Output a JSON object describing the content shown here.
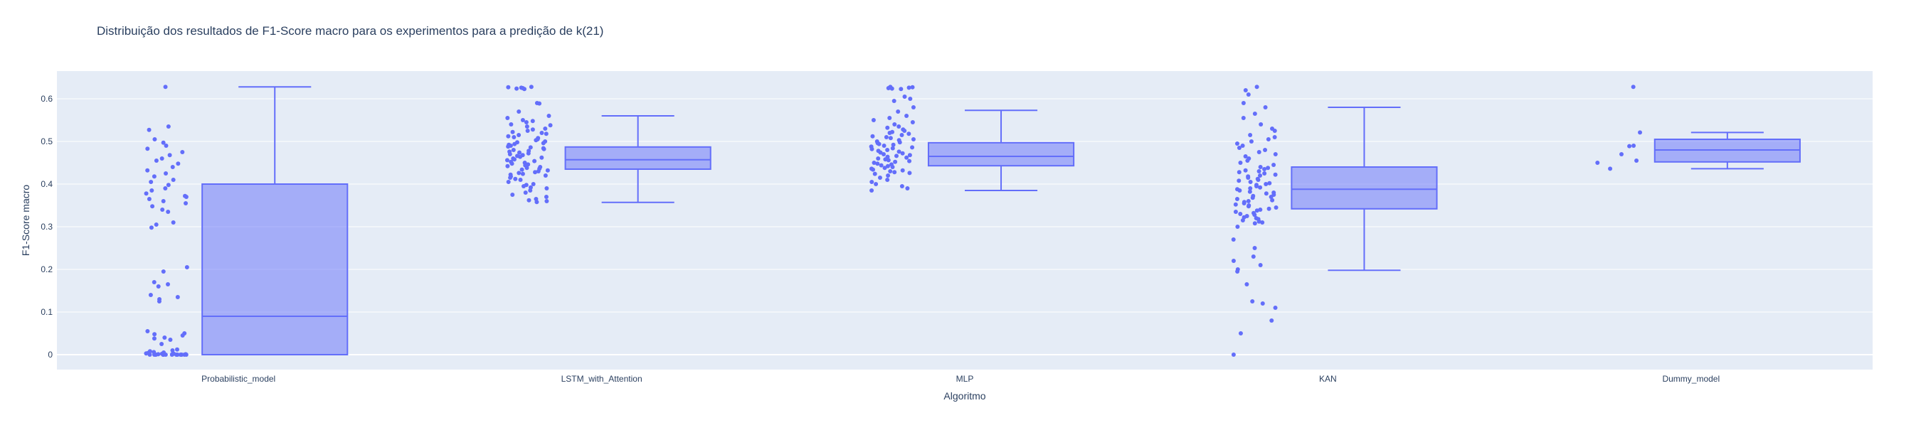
{
  "chart_data": {
    "type": "box",
    "title": "Distribuição dos resultados de F1-Score macro para os experimentos para a predição de k(21)",
    "xlabel": "Algoritmo",
    "ylabel": "F1-Score macro",
    "ylim": [
      -0.035,
      0.665
    ],
    "yticks": [
      0,
      0.1,
      0.2,
      0.3,
      0.4,
      0.5,
      0.6
    ],
    "ytick_labels": [
      "0",
      "0.1",
      "0.2",
      "0.3",
      "0.4",
      "0.5",
      "0.6"
    ],
    "grid": true,
    "legend": "none",
    "categories": [
      "Probabilistic_model",
      "LSTM_with_Attention",
      "MLP",
      "KAN",
      "Dummy_model"
    ],
    "boxes": [
      {
        "name": "Probabilistic_model",
        "min": 0.0,
        "q1": 0.0,
        "median": 0.09,
        "q3": 0.4,
        "max": 0.628
      },
      {
        "name": "LSTM_with_Attention",
        "min": 0.357,
        "q1": 0.435,
        "median": 0.457,
        "q3": 0.487,
        "max": 0.56
      },
      {
        "name": "MLP",
        "min": 0.385,
        "q1": 0.443,
        "median": 0.465,
        "q3": 0.497,
        "max": 0.573
      },
      {
        "name": "KAN",
        "min": 0.198,
        "q1": 0.342,
        "median": 0.388,
        "q3": 0.44,
        "max": 0.58
      },
      {
        "name": "Dummy_model",
        "min": 0.436,
        "q1": 0.452,
        "median": 0.48,
        "q3": 0.505,
        "max": 0.521
      }
    ],
    "points": [
      [
        0.628,
        0.535,
        0.527,
        0.505,
        0.497,
        0.49,
        0.483,
        0.475,
        0.468,
        0.46,
        0.455,
        0.448,
        0.44,
        0.432,
        0.425,
        0.418,
        0.41,
        0.405,
        0.398,
        0.39,
        0.385,
        0.378,
        0.372,
        0.37,
        0.365,
        0.36,
        0.355,
        0.348,
        0.34,
        0.335,
        0.31,
        0.305,
        0.298,
        0.205,
        0.195,
        0.17,
        0.165,
        0.16,
        0.14,
        0.135,
        0.13,
        0.125,
        0.055,
        0.05,
        0.048,
        0.045,
        0.04,
        0.038,
        0.035,
        0.025,
        0.012,
        0.01,
        0.008,
        0.006,
        0.005,
        0.004,
        0.003,
        0.002,
        0.002,
        0.001,
        0.001,
        0.001,
        0.0,
        0.0,
        0.0,
        0.0,
        0.0,
        0.0,
        0.0,
        0.0,
        0.0,
        0.0,
        0.0,
        0.0,
        0.0,
        0.0,
        0.0,
        0.0,
        0.0,
        0.0
      ],
      [
        0.628,
        0.627,
        0.626,
        0.625,
        0.624,
        0.623,
        0.59,
        0.589,
        0.57,
        0.56,
        0.555,
        0.55,
        0.548,
        0.545,
        0.54,
        0.538,
        0.535,
        0.53,
        0.528,
        0.525,
        0.522,
        0.52,
        0.518,
        0.515,
        0.512,
        0.51,
        0.508,
        0.505,
        0.503,
        0.5,
        0.498,
        0.496,
        0.494,
        0.492,
        0.49,
        0.488,
        0.486,
        0.484,
        0.482,
        0.48,
        0.478,
        0.476,
        0.474,
        0.472,
        0.47,
        0.468,
        0.466,
        0.464,
        0.462,
        0.46,
        0.458,
        0.456,
        0.454,
        0.452,
        0.45,
        0.448,
        0.446,
        0.444,
        0.442,
        0.44,
        0.438,
        0.436,
        0.434,
        0.432,
        0.43,
        0.428,
        0.426,
        0.424,
        0.422,
        0.42,
        0.418,
        0.415,
        0.412,
        0.41,
        0.405,
        0.4,
        0.398,
        0.395,
        0.392,
        0.39,
        0.385,
        0.38,
        0.375,
        0.37,
        0.365,
        0.362,
        0.36,
        0.358
      ],
      [
        0.628,
        0.627,
        0.626,
        0.625,
        0.624,
        0.623,
        0.605,
        0.6,
        0.595,
        0.58,
        0.57,
        0.56,
        0.555,
        0.55,
        0.545,
        0.54,
        0.535,
        0.532,
        0.528,
        0.525,
        0.522,
        0.52,
        0.518,
        0.515,
        0.512,
        0.51,
        0.508,
        0.505,
        0.503,
        0.5,
        0.498,
        0.496,
        0.494,
        0.492,
        0.49,
        0.488,
        0.486,
        0.484,
        0.482,
        0.48,
        0.478,
        0.476,
        0.474,
        0.472,
        0.47,
        0.468,
        0.466,
        0.464,
        0.462,
        0.46,
        0.458,
        0.456,
        0.454,
        0.452,
        0.45,
        0.448,
        0.446,
        0.444,
        0.442,
        0.44,
        0.438,
        0.436,
        0.434,
        0.432,
        0.43,
        0.428,
        0.426,
        0.424,
        0.42,
        0.415,
        0.41,
        0.405,
        0.4,
        0.395,
        0.39,
        0.385
      ],
      [
        0.628,
        0.62,
        0.61,
        0.59,
        0.58,
        0.565,
        0.555,
        0.54,
        0.53,
        0.525,
        0.515,
        0.51,
        0.505,
        0.5,
        0.495,
        0.49,
        0.485,
        0.48,
        0.475,
        0.47,
        0.465,
        0.46,
        0.455,
        0.45,
        0.445,
        0.44,
        0.438,
        0.435,
        0.432,
        0.43,
        0.428,
        0.425,
        0.422,
        0.42,
        0.418,
        0.415,
        0.412,
        0.41,
        0.408,
        0.405,
        0.402,
        0.4,
        0.398,
        0.395,
        0.392,
        0.39,
        0.388,
        0.385,
        0.382,
        0.38,
        0.378,
        0.375,
        0.372,
        0.37,
        0.368,
        0.365,
        0.362,
        0.36,
        0.358,
        0.355,
        0.352,
        0.35,
        0.348,
        0.345,
        0.342,
        0.34,
        0.338,
        0.335,
        0.332,
        0.33,
        0.328,
        0.325,
        0.322,
        0.32,
        0.318,
        0.315,
        0.312,
        0.31,
        0.308,
        0.3,
        0.27,
        0.25,
        0.23,
        0.22,
        0.21,
        0.2,
        0.195,
        0.165,
        0.125,
        0.12,
        0.11,
        0.08,
        0.05,
        0.0
      ],
      [
        0.628,
        0.521,
        0.49,
        0.489,
        0.47,
        0.455,
        0.45,
        0.436
      ]
    ],
    "colors": {
      "accent": "#636efa",
      "box_fill": "rgba(99,110,250,0.5)",
      "plot_bg": "#e5ecf6",
      "grid": "#ffffff",
      "text": "#2a3f5f",
      "paper": "#ffffff"
    }
  }
}
